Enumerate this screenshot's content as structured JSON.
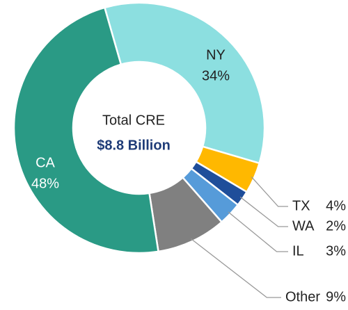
{
  "chart_data": {
    "type": "donut",
    "center_title": "Total CRE",
    "center_value": "$8.8 Billion",
    "categories": [
      "NY",
      "TX",
      "WA",
      "IL",
      "Other",
      "CA"
    ],
    "values": [
      34,
      4,
      2,
      3,
      9,
      48
    ],
    "value_labels": [
      "34%",
      "4%",
      "2%",
      "3%",
      "9%",
      "48%"
    ],
    "colors": [
      "#8cdfe0",
      "#ffb800",
      "#1f4e9a",
      "#569bd9",
      "#808080",
      "#2a9a85"
    ]
  }
}
